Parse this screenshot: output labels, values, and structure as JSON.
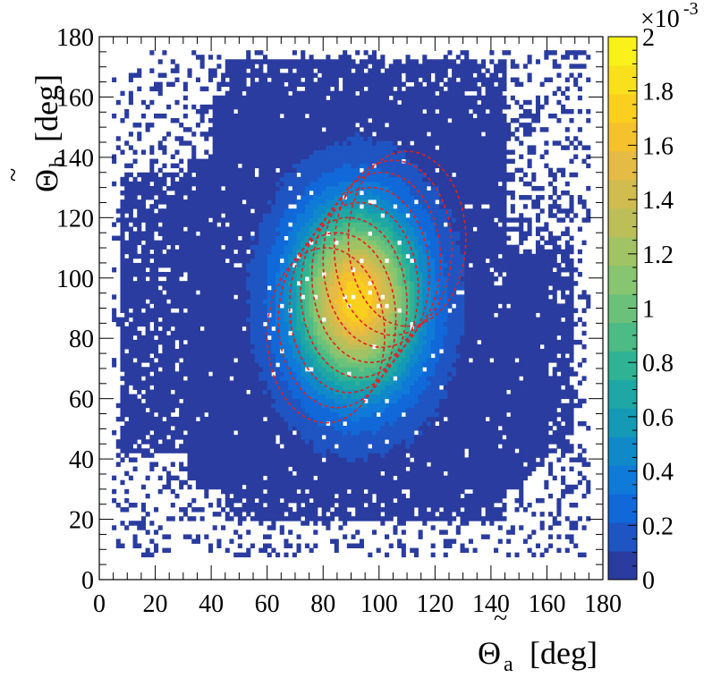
{
  "chart_data": {
    "type": "heatmap",
    "title": "",
    "xlabel": {
      "symbol": "Θ",
      "tilde": "~",
      "subscript": "a",
      "unit": "[deg]"
    },
    "ylabel": {
      "symbol": "Θ",
      "tilde": "~",
      "subscript": "b",
      "unit": "[deg]"
    },
    "xlim": [
      0,
      180
    ],
    "ylim": [
      0,
      180
    ],
    "x_ticks": [
      "0",
      "20",
      "40",
      "60",
      "80",
      "100",
      "120",
      "140",
      "160",
      "180"
    ],
    "y_ticks": [
      "0",
      "20",
      "40",
      "60",
      "80",
      "100",
      "120",
      "140",
      "160",
      "180"
    ],
    "colorbar": {
      "range": [
        0,
        0.002
      ],
      "multiplier_label": {
        "base": "×10",
        "exponent": "-3"
      },
      "tick_labels": [
        "0",
        "0.2",
        "0.4",
        "0.6",
        "0.8",
        "1",
        "1.2",
        "1.4",
        "1.6",
        "1.8",
        "2"
      ],
      "palette": [
        "#2a3c9f",
        "#1f55c2",
        "#1068d9",
        "#0f7ad8",
        "#1089c9",
        "#149ab5",
        "#1ea7a4",
        "#30b394",
        "#4dbb85",
        "#6cc17a",
        "#88c570",
        "#a2c364",
        "#bcbe58",
        "#d0bc4f",
        "#e5bb45",
        "#f5c22e",
        "#fbcf1e",
        "#f9e01d",
        "#f9f11a"
      ]
    },
    "histogram": {
      "peak": {
        "x": 92,
        "y": 93,
        "value": 0.0017
      },
      "core_region": {
        "x_range": [
          35,
          150
        ],
        "y_range": [
          25,
          150
        ]
      },
      "sparse_region": {
        "x_range": [
          5,
          175
        ],
        "y_range": [
          8,
          175
        ]
      }
    },
    "contours": {
      "style": "dashed",
      "color": "#e02020",
      "ellipses": [
        {
          "cx": 81,
          "cy": 81,
          "rx": 21,
          "ry": 29
        },
        {
          "cx": 85,
          "cy": 86,
          "rx": 21,
          "ry": 29
        },
        {
          "cx": 89,
          "cy": 91,
          "rx": 21,
          "ry": 29
        },
        {
          "cx": 93,
          "cy": 96,
          "rx": 21,
          "ry": 29
        },
        {
          "cx": 97,
          "cy": 101,
          "rx": 21,
          "ry": 29
        },
        {
          "cx": 101,
          "cy": 106,
          "rx": 21,
          "ry": 29
        },
        {
          "cx": 105,
          "cy": 110,
          "rx": 21,
          "ry": 29
        },
        {
          "cx": 110,
          "cy": 113,
          "rx": 21,
          "ry": 29
        }
      ]
    }
  }
}
